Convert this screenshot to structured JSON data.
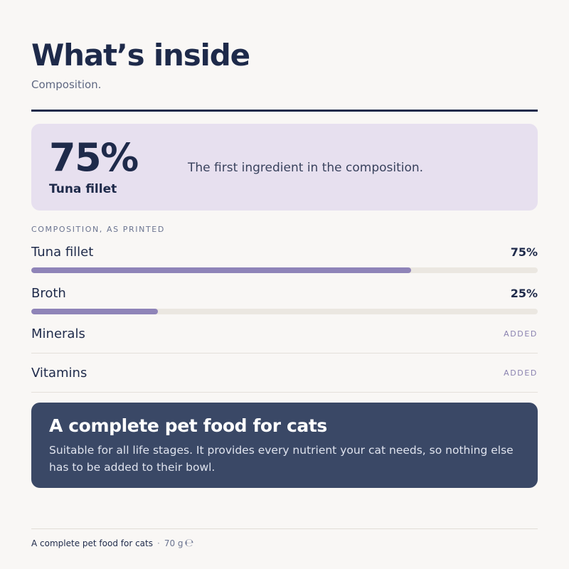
{
  "header": {
    "title": "What’s inside",
    "subtitle": "Composition."
  },
  "highlight": {
    "percent": "75%",
    "ingredient": "Tuna fillet",
    "description": "The first ingredient in the composition."
  },
  "composition": {
    "label": "COMPOSITION, AS PRINTED",
    "percent_items": [
      {
        "name": "Tuna fillet",
        "percent_label": "75%",
        "percent": 75
      },
      {
        "name": "Broth",
        "percent_label": "25%",
        "percent": 25
      }
    ],
    "added_items": [
      {
        "name": "Minerals",
        "tag": "ADDED"
      },
      {
        "name": "Vitamins",
        "tag": "ADDED"
      }
    ]
  },
  "callout": {
    "title": "A complete pet food for cats",
    "body": "Suitable for all life stages. It provides every nutrient your cat needs, so nothing else has to be added to their bowl."
  },
  "footer": {
    "product": "A complete pet food for cats",
    "separator": "·",
    "weight": "70 g",
    "estimate_mark": "℮"
  },
  "colors": {
    "navy": "#1e2a4a",
    "lavender_panel": "#e7e0ef",
    "bar_fill": "#8f84b8",
    "bar_track": "#ebe7e1",
    "callout_bg": "#3a4866"
  }
}
